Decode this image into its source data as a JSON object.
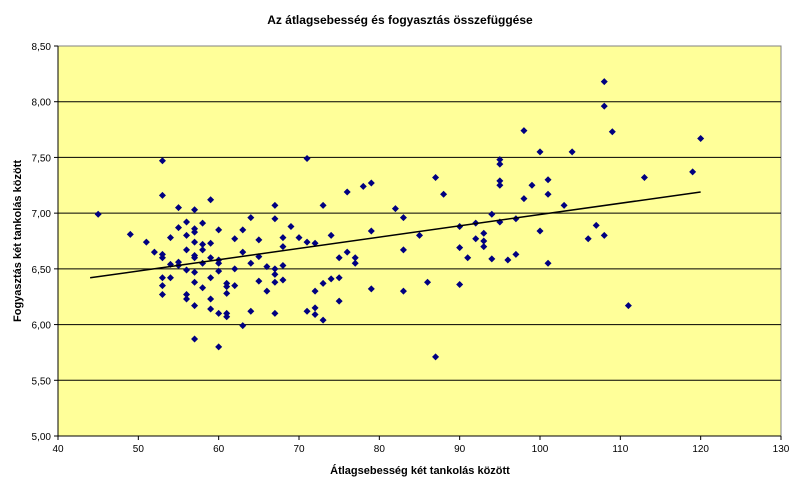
{
  "chart_data": {
    "type": "scatter",
    "title": "Az átlagsebesség és fogyasztás összefüggése",
    "xlabel": "Átlagsebesség két tankolás között",
    "ylabel": "Fogyasztás két tankolás között",
    "xlim": [
      40,
      130
    ],
    "ylim": [
      5.0,
      8.5
    ],
    "xticks": [
      "40",
      "50",
      "60",
      "70",
      "80",
      "90",
      "100",
      "110",
      "120",
      "130"
    ],
    "yticks": [
      "5,00",
      "5,50",
      "6,00",
      "6,50",
      "7,00",
      "7,50",
      "8,00",
      "8,50"
    ],
    "grid": "horizontal",
    "legend": "none",
    "colors": {
      "plot_bg": "#FFFF99",
      "marker": "#000080",
      "trendline": "#000000",
      "grid": "#000000"
    },
    "trendline": {
      "type": "linear",
      "x": [
        44,
        120
      ],
      "y": [
        6.42,
        7.19
      ]
    },
    "points": [
      [
        45,
        6.99
      ],
      [
        49,
        6.81
      ],
      [
        51,
        6.74
      ],
      [
        52,
        6.65
      ],
      [
        53,
        7.47
      ],
      [
        53,
        7.16
      ],
      [
        53,
        6.63
      ],
      [
        53,
        6.6
      ],
      [
        53,
        6.42
      ],
      [
        53,
        6.35
      ],
      [
        53,
        6.27
      ],
      [
        54,
        6.78
      ],
      [
        54,
        6.54
      ],
      [
        54,
        6.42
      ],
      [
        55,
        7.05
      ],
      [
        55,
        6.87
      ],
      [
        55,
        6.56
      ],
      [
        55,
        6.53
      ],
      [
        56,
        6.92
      ],
      [
        56,
        6.8
      ],
      [
        56,
        6.67
      ],
      [
        56,
        6.49
      ],
      [
        56,
        6.27
      ],
      [
        56,
        6.23
      ],
      [
        57,
        7.03
      ],
      [
        57,
        6.86
      ],
      [
        57,
        6.83
      ],
      [
        57,
        6.74
      ],
      [
        57,
        6.62
      ],
      [
        57,
        6.6
      ],
      [
        57,
        6.47
      ],
      [
        57,
        6.38
      ],
      [
        57,
        6.17
      ],
      [
        57,
        5.87
      ],
      [
        58,
        6.91
      ],
      [
        58,
        6.72
      ],
      [
        58,
        6.67
      ],
      [
        58,
        6.55
      ],
      [
        58,
        6.33
      ],
      [
        59,
        7.12
      ],
      [
        59,
        6.73
      ],
      [
        59,
        6.6
      ],
      [
        59,
        6.42
      ],
      [
        59,
        6.23
      ],
      [
        59,
        6.14
      ],
      [
        60,
        6.85
      ],
      [
        60,
        6.58
      ],
      [
        60,
        6.55
      ],
      [
        60,
        6.48
      ],
      [
        60,
        6.1
      ],
      [
        60,
        5.8
      ],
      [
        61,
        6.37
      ],
      [
        61,
        6.34
      ],
      [
        61,
        6.28
      ],
      [
        61,
        6.1
      ],
      [
        61,
        6.07
      ],
      [
        62,
        6.77
      ],
      [
        62,
        6.5
      ],
      [
        62,
        6.35
      ],
      [
        63,
        6.85
      ],
      [
        63,
        6.65
      ],
      [
        63,
        5.99
      ],
      [
        64,
        6.96
      ],
      [
        64,
        6.55
      ],
      [
        64,
        6.12
      ],
      [
        65,
        6.76
      ],
      [
        65,
        6.61
      ],
      [
        65,
        6.39
      ],
      [
        66,
        6.52
      ],
      [
        66,
        6.3
      ],
      [
        67,
        7.07
      ],
      [
        67,
        6.95
      ],
      [
        67,
        6.5
      ],
      [
        67,
        6.45
      ],
      [
        67,
        6.38
      ],
      [
        67,
        6.1
      ],
      [
        68,
        6.78
      ],
      [
        68,
        6.7
      ],
      [
        68,
        6.53
      ],
      [
        68,
        6.4
      ],
      [
        69,
        6.88
      ],
      [
        70,
        6.78
      ],
      [
        71,
        7.49
      ],
      [
        71,
        6.74
      ],
      [
        71,
        6.12
      ],
      [
        72,
        6.73
      ],
      [
        72,
        6.3
      ],
      [
        72,
        6.15
      ],
      [
        72,
        6.09
      ],
      [
        73,
        7.07
      ],
      [
        73,
        6.37
      ],
      [
        73,
        6.04
      ],
      [
        74,
        6.8
      ],
      [
        74,
        6.41
      ],
      [
        75,
        6.6
      ],
      [
        75,
        6.42
      ],
      [
        75,
        6.21
      ],
      [
        76,
        7.19
      ],
      [
        76,
        6.65
      ],
      [
        77,
        6.6
      ],
      [
        77,
        6.55
      ],
      [
        78,
        7.24
      ],
      [
        79,
        7.27
      ],
      [
        79,
        6.84
      ],
      [
        79,
        6.32
      ],
      [
        82,
        7.04
      ],
      [
        83,
        6.96
      ],
      [
        83,
        6.67
      ],
      [
        83,
        6.3
      ],
      [
        85,
        6.8
      ],
      [
        86,
        6.38
      ],
      [
        87,
        7.32
      ],
      [
        87,
        5.71
      ],
      [
        88,
        7.17
      ],
      [
        90,
        6.88
      ],
      [
        90,
        6.69
      ],
      [
        90,
        6.36
      ],
      [
        91,
        6.6
      ],
      [
        92,
        6.91
      ],
      [
        92,
        6.77
      ],
      [
        93,
        6.82
      ],
      [
        93,
        6.75
      ],
      [
        93,
        6.7
      ],
      [
        94,
        6.99
      ],
      [
        94,
        6.59
      ],
      [
        95,
        7.48
      ],
      [
        95,
        7.44
      ],
      [
        95,
        7.29
      ],
      [
        95,
        7.25
      ],
      [
        95,
        6.92
      ],
      [
        96,
        6.58
      ],
      [
        97,
        6.95
      ],
      [
        97,
        6.63
      ],
      [
        98,
        7.74
      ],
      [
        98,
        7.13
      ],
      [
        99,
        7.25
      ],
      [
        100,
        7.55
      ],
      [
        100,
        6.84
      ],
      [
        101,
        7.3
      ],
      [
        101,
        7.17
      ],
      [
        101,
        6.55
      ],
      [
        103,
        7.07
      ],
      [
        104,
        7.55
      ],
      [
        106,
        6.77
      ],
      [
        107,
        6.89
      ],
      [
        108,
        8.18
      ],
      [
        108,
        7.96
      ],
      [
        108,
        6.8
      ],
      [
        109,
        7.73
      ],
      [
        111,
        6.17
      ],
      [
        113,
        7.32
      ],
      [
        119,
        7.37
      ],
      [
        120,
        7.67
      ]
    ]
  }
}
